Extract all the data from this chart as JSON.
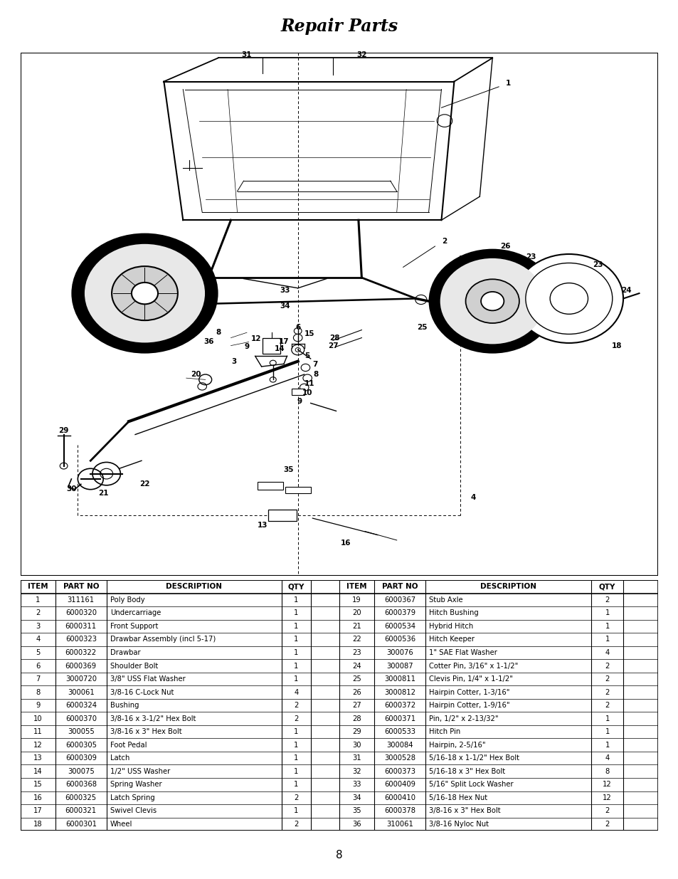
{
  "title": "Repair Parts",
  "page_number": "8",
  "bg_color": "#ffffff",
  "table_header": [
    "ITEM",
    "PART NO",
    "DESCRIPTION",
    "QTY",
    "ITEM",
    "PART NO",
    "DESCRIPTION",
    "QTY"
  ],
  "table_data_left": [
    [
      "1",
      "311161",
      "Poly Body",
      "1"
    ],
    [
      "2",
      "6000320",
      "Undercarriage",
      "1"
    ],
    [
      "3",
      "6000311",
      "Front Support",
      "1"
    ],
    [
      "4",
      "6000323",
      "Drawbar Assembly (incl 5-17)",
      "1"
    ],
    [
      "5",
      "6000322",
      "Drawbar",
      "1"
    ],
    [
      "6",
      "6000369",
      "Shoulder Bolt",
      "1"
    ],
    [
      "7",
      "3000720",
      "3/8\" USS Flat Washer",
      "1"
    ],
    [
      "8",
      "300061",
      "3/8-16 C-Lock Nut",
      "4"
    ],
    [
      "9",
      "6000324",
      "Bushing",
      "2"
    ],
    [
      "10",
      "6000370",
      "3/8-16 x 3-1/2\" Hex Bolt",
      "2"
    ],
    [
      "11",
      "300055",
      "3/8-16 x 3\" Hex Bolt",
      "1"
    ],
    [
      "12",
      "6000305",
      "Foot Pedal",
      "1"
    ],
    [
      "13",
      "6000309",
      "Latch",
      "1"
    ],
    [
      "14",
      "300075",
      "1/2\" USS Washer",
      "1"
    ],
    [
      "15",
      "6000368",
      "Spring Washer",
      "1"
    ],
    [
      "16",
      "6000325",
      "Latch Spring",
      "2"
    ],
    [
      "17",
      "6000321",
      "Swivel Clevis",
      "1"
    ],
    [
      "18",
      "6000301",
      "Wheel",
      "2"
    ]
  ],
  "table_data_right": [
    [
      "19",
      "6000367",
      "Stub Axle",
      "2"
    ],
    [
      "20",
      "6000379",
      "Hitch Bushing",
      "1"
    ],
    [
      "21",
      "6000534",
      "Hybrid Hitch",
      "1"
    ],
    [
      "22",
      "6000536",
      "Hitch Keeper",
      "1"
    ],
    [
      "23",
      "300076",
      "1\" SAE Flat Washer",
      "4"
    ],
    [
      "24",
      "300087",
      "Cotter Pin, 3/16\" x 1-1/2\"",
      "2"
    ],
    [
      "25",
      "3000811",
      "Clevis Pin, 1/4\" x 1-1/2\"",
      "2"
    ],
    [
      "26",
      "3000812",
      "Hairpin Cotter, 1-3/16\"",
      "2"
    ],
    [
      "27",
      "6000372",
      "Hairpin Cotter, 1-9/16\"",
      "2"
    ],
    [
      "28",
      "6000371",
      "Pin, 1/2\" x 2-13/32\"",
      "1"
    ],
    [
      "29",
      "6000533",
      "Hitch Pin",
      "1"
    ],
    [
      "30",
      "300084",
      "Hairpin, 2-5/16\"",
      "1"
    ],
    [
      "31",
      "3000528",
      "5/16-18 x 1-1/2\" Hex Bolt",
      "4"
    ],
    [
      "32",
      "6000373",
      "5/16-18 x 3\" Hex Bolt",
      "8"
    ],
    [
      "33",
      "6000409",
      "5/16\" Split Lock Washer",
      "12"
    ],
    [
      "34",
      "6000410",
      "5/16-18 Hex Nut",
      "12"
    ],
    [
      "35",
      "6000378",
      "3/8-16 x 3\" Hex Bolt",
      "2"
    ],
    [
      "36",
      "310061",
      "3/8-16 Nyloc Nut",
      "2"
    ]
  ],
  "vlines_x": [
    0.0,
    0.055,
    0.135,
    0.41,
    0.455,
    0.5,
    0.555,
    0.635,
    0.895,
    0.945,
    1.0
  ],
  "title_fontsize": 17,
  "header_fontsize": 7.5,
  "data_fontsize": 7.2
}
